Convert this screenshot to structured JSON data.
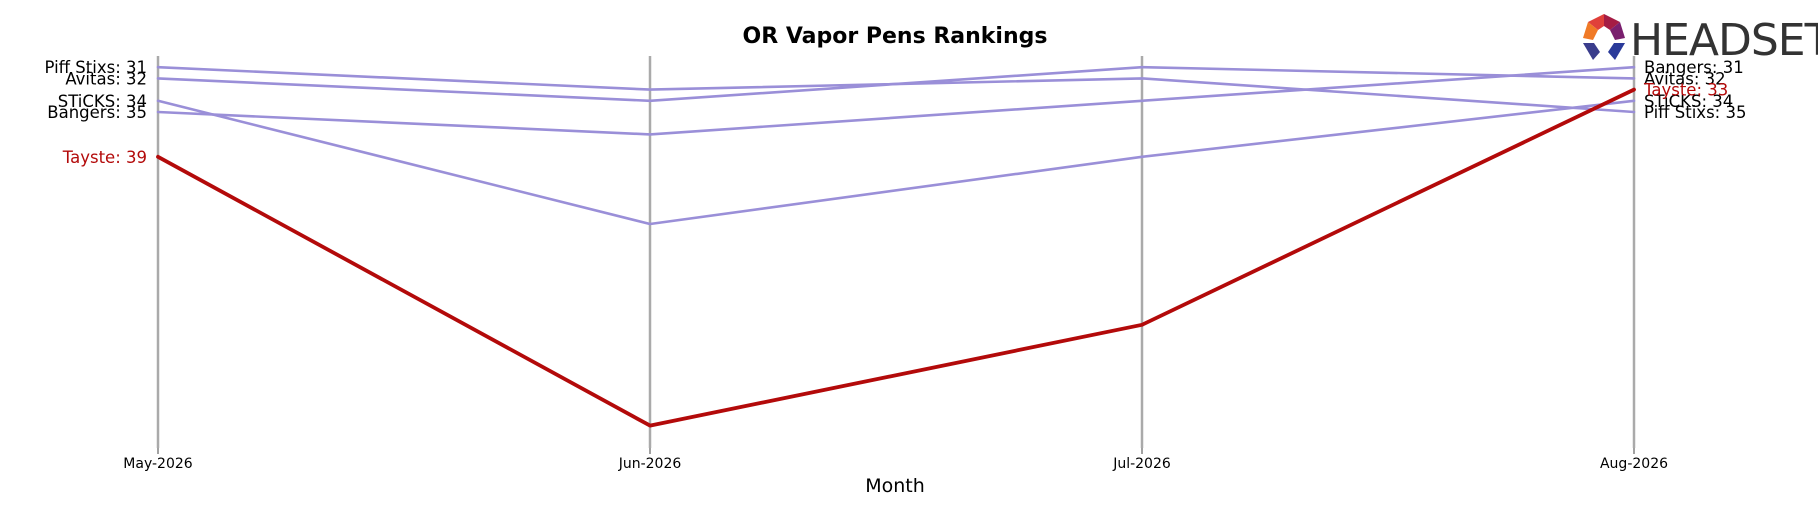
{
  "chart_data": {
    "type": "line",
    "title": "OR Vapor Pens Rankings",
    "xlabel": "Month",
    "ylabel": "",
    "categories": [
      "May-2026",
      "Jun-2026",
      "Jul-2026",
      "Aug-2026"
    ],
    "y_inverted": true,
    "ylim": [
      30,
      64
    ],
    "grid": "vertical lines at each month",
    "series": [
      {
        "name": "Piff Stixs",
        "values": [
          31,
          33,
          32,
          35
        ],
        "color": "#9a8fd8",
        "highlight": false
      },
      {
        "name": "Avitas",
        "values": [
          32,
          34,
          31,
          32
        ],
        "color": "#9a8fd8",
        "highlight": false
      },
      {
        "name": "STiCKS",
        "values": [
          34,
          45,
          39,
          34
        ],
        "color": "#9a8fd8",
        "highlight": false
      },
      {
        "name": "Bangers",
        "values": [
          35,
          37,
          34,
          31
        ],
        "color": "#9a8fd8",
        "highlight": false
      },
      {
        "name": "Tayste",
        "values": [
          39,
          63,
          54,
          33
        ],
        "color": "#b30a0a",
        "highlight": true
      }
    ],
    "start_labels": [
      "Piff Stixs: 31",
      "Avitas: 32",
      "STiCKS: 34",
      "Bangers: 35",
      "Tayste: 39"
    ],
    "end_labels": [
      "Bangers: 31",
      "Avitas: 32",
      "Tayste: 33",
      "STiCKS: 34",
      "Piff Stixs: 35"
    ]
  },
  "logo": {
    "text": "HEADSET"
  },
  "colors": {
    "highlight": "#b30a0a",
    "other": "#9a8fd8",
    "gridline": "#aaaaaa"
  }
}
